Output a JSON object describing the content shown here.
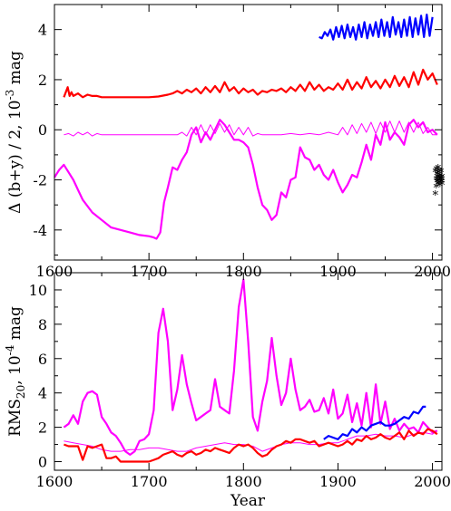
{
  "chart_data": [
    {
      "type": "line",
      "ylabel_main": "Δ (b+y) / 2, 10",
      "ylabel_sup": "-3",
      "ylabel_tail": " mag",
      "xlim": [
        1600,
        2010
      ],
      "ylim": [
        -5.2,
        5.0
      ],
      "xticks": [
        "1600",
        "1700",
        "1800",
        "1900",
        "2000"
      ],
      "yticks": [
        "-4",
        "-2",
        "0",
        "2",
        "4"
      ],
      "series": [
        {
          "color": "#0000ff",
          "width": 2.2,
          "x": [
            1880,
            1883,
            1886,
            1889,
            1892,
            1895,
            1898,
            1901,
            1904,
            1907,
            1910,
            1913,
            1916,
            1919,
            1922,
            1925,
            1928,
            1931,
            1934,
            1937,
            1940,
            1943,
            1946,
            1949,
            1952,
            1955,
            1958,
            1961,
            1964,
            1967,
            1970,
            1973,
            1976,
            1979,
            1982,
            1985,
            1988,
            1991,
            1994,
            1997,
            2000
          ],
          "y": [
            3.7,
            3.65,
            3.9,
            3.75,
            4.0,
            3.6,
            4.1,
            3.7,
            4.15,
            3.65,
            4.2,
            3.7,
            4.1,
            3.6,
            4.2,
            3.7,
            4.3,
            3.65,
            4.2,
            3.75,
            4.3,
            3.7,
            4.4,
            3.75,
            4.3,
            3.7,
            4.5,
            3.8,
            4.3,
            3.7,
            4.4,
            3.75,
            4.5,
            3.7,
            4.45,
            3.8,
            4.55,
            3.7,
            4.6,
            3.75,
            4.5
          ]
        },
        {
          "color": "#ff0000",
          "width": 2.2,
          "x": [
            1610,
            1612,
            1614,
            1616,
            1618,
            1620,
            1625,
            1630,
            1635,
            1640,
            1645,
            1650,
            1660,
            1670,
            1680,
            1690,
            1700,
            1710,
            1720,
            1725,
            1730,
            1735,
            1740,
            1745,
            1750,
            1755,
            1760,
            1765,
            1770,
            1775,
            1780,
            1785,
            1790,
            1795,
            1800,
            1805,
            1810,
            1815,
            1820,
            1825,
            1830,
            1835,
            1840,
            1845,
            1850,
            1855,
            1860,
            1865,
            1870,
            1875,
            1880,
            1885,
            1890,
            1895,
            1900,
            1905,
            1910,
            1915,
            1920,
            1925,
            1930,
            1935,
            1940,
            1945,
            1950,
            1955,
            1960,
            1965,
            1970,
            1975,
            1980,
            1985,
            1990,
            1995,
            2000,
            2005
          ],
          "y": [
            1.3,
            1.5,
            1.7,
            1.35,
            1.5,
            1.35,
            1.45,
            1.3,
            1.4,
            1.35,
            1.35,
            1.3,
            1.3,
            1.3,
            1.3,
            1.3,
            1.3,
            1.33,
            1.4,
            1.45,
            1.55,
            1.45,
            1.6,
            1.5,
            1.65,
            1.45,
            1.7,
            1.5,
            1.75,
            1.5,
            1.9,
            1.55,
            1.7,
            1.45,
            1.65,
            1.5,
            1.6,
            1.4,
            1.55,
            1.5,
            1.6,
            1.55,
            1.65,
            1.5,
            1.7,
            1.55,
            1.8,
            1.55,
            1.9,
            1.6,
            1.8,
            1.55,
            1.7,
            1.6,
            1.85,
            1.6,
            2.0,
            1.6,
            1.9,
            1.65,
            2.1,
            1.7,
            1.95,
            1.65,
            2.0,
            1.7,
            2.15,
            1.75,
            2.1,
            1.7,
            2.3,
            1.8,
            2.4,
            2.0,
            2.25,
            1.8
          ]
        },
        {
          "color": "#ff00ff",
          "width": 1.0,
          "x": [
            1610,
            1615,
            1620,
            1625,
            1630,
            1635,
            1640,
            1645,
            1650,
            1660,
            1670,
            1680,
            1690,
            1700,
            1710,
            1720,
            1730,
            1735,
            1740,
            1745,
            1750,
            1755,
            1760,
            1765,
            1770,
            1775,
            1780,
            1785,
            1790,
            1795,
            1800,
            1805,
            1810,
            1815,
            1820,
            1825,
            1830,
            1840,
            1850,
            1860,
            1870,
            1880,
            1890,
            1900,
            1905,
            1910,
            1915,
            1920,
            1925,
            1930,
            1935,
            1940,
            1945,
            1950,
            1955,
            1960,
            1965,
            1970,
            1975,
            1980,
            1985,
            1990,
            1995,
            2000,
            2005
          ],
          "y": [
            -0.2,
            -0.15,
            -0.25,
            -0.1,
            -0.2,
            -0.1,
            -0.25,
            -0.15,
            -0.2,
            -0.2,
            -0.2,
            -0.2,
            -0.2,
            -0.2,
            -0.2,
            -0.2,
            -0.2,
            -0.1,
            -0.25,
            0.1,
            -0.2,
            0.2,
            -0.2,
            0.2,
            -0.15,
            0.25,
            -0.1,
            0.2,
            -0.2,
            0.1,
            -0.2,
            0.1,
            -0.25,
            -0.15,
            -0.2,
            -0.2,
            -0.2,
            -0.2,
            -0.15,
            -0.2,
            -0.15,
            -0.2,
            -0.1,
            -0.2,
            0.1,
            -0.2,
            0.2,
            -0.15,
            0.25,
            -0.1,
            0.3,
            -0.15,
            0.3,
            -0.1,
            0.35,
            -0.1,
            0.35,
            -0.1,
            0.3,
            -0.1,
            0.3,
            -0.15,
            0.1,
            -0.2,
            -0.2
          ]
        },
        {
          "color": "#ff00ff",
          "width": 2.2,
          "x": [
            1600,
            1605,
            1610,
            1615,
            1620,
            1625,
            1630,
            1640,
            1650,
            1660,
            1670,
            1680,
            1690,
            1700,
            1705,
            1708,
            1712,
            1716,
            1720,
            1725,
            1730,
            1735,
            1740,
            1745,
            1750,
            1755,
            1760,
            1765,
            1770,
            1775,
            1780,
            1785,
            1790,
            1795,
            1800,
            1805,
            1810,
            1815,
            1820,
            1825,
            1830,
            1835,
            1840,
            1845,
            1850,
            1855,
            1860,
            1865,
            1870,
            1875,
            1880,
            1885,
            1890,
            1895,
            1900,
            1905,
            1910,
            1915,
            1920,
            1925,
            1930,
            1935,
            1940,
            1945,
            1950,
            1955,
            1960,
            1965,
            1970,
            1975,
            1980,
            1985,
            1990,
            1995,
            2000,
            2005
          ],
          "y": [
            -1.9,
            -1.6,
            -1.4,
            -1.7,
            -2.0,
            -2.4,
            -2.8,
            -3.3,
            -3.6,
            -3.9,
            -4.0,
            -4.1,
            -4.2,
            -4.25,
            -4.3,
            -4.35,
            -4.1,
            -2.9,
            -2.3,
            -1.5,
            -1.6,
            -1.2,
            -0.9,
            -0.2,
            0.1,
            -0.5,
            -0.1,
            -0.4,
            0.0,
            0.4,
            0.2,
            -0.1,
            -0.4,
            -0.4,
            -0.5,
            -0.7,
            -1.4,
            -2.3,
            -3.0,
            -3.2,
            -3.6,
            -3.4,
            -2.5,
            -2.7,
            -2.0,
            -1.9,
            -0.7,
            -1.1,
            -1.2,
            -1.6,
            -1.4,
            -1.8,
            -2.0,
            -1.6,
            -2.1,
            -2.5,
            -2.2,
            -1.8,
            -1.9,
            -1.3,
            -0.6,
            -1.2,
            -0.2,
            -0.6,
            0.3,
            -0.4,
            -0.1,
            -0.3,
            -0.6,
            0.2,
            0.4,
            0.1,
            0.3,
            -0.1,
            0.0,
            -0.2
          ]
        }
      ],
      "markers": {
        "color": "#000000",
        "symbol": "*",
        "x": [
          2003,
          2003,
          2004,
          2004,
          2004,
          2005,
          2005,
          2005,
          2006,
          2006,
          2006,
          2006,
          2007,
          2007,
          2007,
          2008,
          2008,
          2008,
          2009,
          2009,
          2009,
          2010,
          2010,
          2010,
          2010
        ],
        "y": [
          -2.6,
          -1.7,
          -2.0,
          -2.3,
          -1.6,
          -1.8,
          -2.1,
          -1.9,
          -1.55,
          -2.2,
          -1.75,
          -2.05,
          -1.9,
          -2.15,
          -1.65,
          -1.85,
          -2.0,
          -2.25,
          -1.95,
          -2.1,
          -1.7,
          -2.0,
          -2.2,
          -1.9,
          -2.1
        ]
      }
    },
    {
      "type": "line",
      "ylabel_main": "RMS",
      "ylabel_sub": "20",
      "ylabel_tail": ", 10",
      "ylabel_sup": "-4",
      "ylabel_tail2": " mag",
      "xlabel": "Year",
      "xlim": [
        1600,
        2010
      ],
      "ylim": [
        -0.5,
        11.0
      ],
      "xticks": [
        "1600",
        "1700",
        "1800",
        "1900",
        "2000"
      ],
      "yticks": [
        "0",
        "2",
        "4",
        "6",
        "8",
        "10"
      ],
      "series": [
        {
          "color": "#ff00ff",
          "width": 2.2,
          "x": [
            1610,
            1615,
            1620,
            1625,
            1630,
            1635,
            1640,
            1645,
            1650,
            1655,
            1660,
            1665,
            1670,
            1675,
            1680,
            1685,
            1690,
            1695,
            1700,
            1705,
            1710,
            1715,
            1720,
            1725,
            1730,
            1735,
            1740,
            1745,
            1750,
            1755,
            1760,
            1765,
            1770,
            1775,
            1780,
            1785,
            1790,
            1795,
            1800,
            1805,
            1810,
            1815,
            1820,
            1825,
            1830,
            1835,
            1840,
            1845,
            1850,
            1855,
            1860,
            1865,
            1870,
            1875,
            1880,
            1885,
            1890,
            1895,
            1900,
            1905,
            1910,
            1915,
            1920,
            1925,
            1930,
            1935,
            1940,
            1945,
            1950,
            1955,
            1960,
            1965,
            1970,
            1975,
            1980,
            1985,
            1990,
            1995,
            2000,
            2005
          ],
          "y": [
            2.0,
            2.2,
            2.7,
            2.2,
            3.5,
            4.0,
            4.1,
            3.9,
            2.6,
            2.2,
            1.7,
            1.5,
            1.1,
            0.6,
            0.4,
            0.6,
            1.2,
            1.3,
            1.6,
            3.0,
            7.5,
            8.9,
            7.0,
            3.0,
            4.2,
            6.2,
            4.5,
            3.4,
            2.4,
            2.6,
            2.8,
            3.0,
            4.8,
            3.2,
            3.0,
            2.8,
            5.3,
            9.0,
            10.6,
            7.0,
            2.6,
            1.8,
            3.5,
            4.7,
            7.2,
            5.0,
            3.3,
            4.0,
            6.0,
            4.2,
            3.0,
            3.2,
            3.6,
            2.9,
            3.0,
            3.7,
            2.8,
            4.2,
            2.5,
            2.8,
            3.9,
            2.3,
            3.4,
            2.1,
            4.0,
            2.0,
            4.5,
            2.2,
            3.5,
            1.9,
            2.5,
            1.8,
            2.2,
            1.9,
            2.0,
            1.7,
            2.3,
            2.0,
            1.7,
            1.8
          ]
        },
        {
          "color": "#ff00ff",
          "width": 1.0,
          "x": [
            1610,
            1620,
            1630,
            1640,
            1650,
            1660,
            1670,
            1680,
            1690,
            1700,
            1710,
            1720,
            1730,
            1740,
            1750,
            1760,
            1770,
            1780,
            1790,
            1800,
            1810,
            1820,
            1830,
            1840,
            1850,
            1860,
            1870,
            1880,
            1890,
            1900,
            1910,
            1920,
            1930,
            1940,
            1950,
            1960,
            1970,
            1980,
            1990,
            2000,
            2005
          ],
          "y": [
            1.2,
            1.1,
            1.0,
            0.9,
            0.7,
            0.6,
            0.6,
            0.7,
            0.7,
            0.8,
            0.8,
            0.7,
            0.6,
            0.6,
            0.8,
            0.9,
            1.0,
            1.1,
            1.0,
            1.0,
            0.9,
            0.6,
            0.8,
            1.0,
            1.1,
            1.1,
            1.0,
            1.0,
            1.1,
            1.1,
            1.3,
            1.5,
            1.5,
            1.6,
            1.5,
            1.5,
            1.4,
            1.6,
            1.7,
            1.6,
            1.8
          ]
        },
        {
          "color": "#ff0000",
          "width": 2.2,
          "x": [
            1610,
            1615,
            1620,
            1625,
            1630,
            1635,
            1640,
            1645,
            1650,
            1655,
            1660,
            1665,
            1670,
            1680,
            1690,
            1700,
            1705,
            1710,
            1715,
            1720,
            1725,
            1730,
            1735,
            1740,
            1745,
            1750,
            1755,
            1760,
            1765,
            1770,
            1775,
            1780,
            1785,
            1790,
            1795,
            1800,
            1805,
            1810,
            1815,
            1820,
            1825,
            1830,
            1835,
            1840,
            1845,
            1850,
            1855,
            1860,
            1865,
            1870,
            1875,
            1880,
            1885,
            1890,
            1895,
            1900,
            1905,
            1910,
            1915,
            1920,
            1925,
            1930,
            1935,
            1940,
            1945,
            1950,
            1955,
            1960,
            1965,
            1970,
            1975,
            1980,
            1985,
            1990,
            1995,
            2000,
            2005
          ],
          "y": [
            1.0,
            0.9,
            0.9,
            0.9,
            0.1,
            0.9,
            0.8,
            0.9,
            1.0,
            0.2,
            0.2,
            0.3,
            0.0,
            0.0,
            0.0,
            0.0,
            0.1,
            0.2,
            0.4,
            0.5,
            0.6,
            0.4,
            0.3,
            0.5,
            0.6,
            0.4,
            0.5,
            0.7,
            0.6,
            0.8,
            0.7,
            0.6,
            0.5,
            0.8,
            1.0,
            0.9,
            1.0,
            0.8,
            0.5,
            0.3,
            0.4,
            0.7,
            0.9,
            1.0,
            1.2,
            1.1,
            1.3,
            1.3,
            1.2,
            1.1,
            1.2,
            0.9,
            1.0,
            1.1,
            1.0,
            0.9,
            1.0,
            1.2,
            1.0,
            1.3,
            1.2,
            1.5,
            1.3,
            1.4,
            1.6,
            1.4,
            1.3,
            1.5,
            1.7,
            1.3,
            1.8,
            1.5,
            1.7,
            1.6,
            1.9,
            1.8,
            1.6
          ]
        },
        {
          "color": "#0000ff",
          "width": 2.2,
          "x": [
            1885,
            1890,
            1895,
            1900,
            1905,
            1910,
            1915,
            1920,
            1925,
            1930,
            1935,
            1940,
            1945,
            1950,
            1955,
            1960,
            1965,
            1970,
            1975,
            1980,
            1985,
            1990,
            1993
          ],
          "y": [
            1.3,
            1.5,
            1.4,
            1.3,
            1.6,
            1.5,
            1.9,
            1.7,
            2.0,
            1.8,
            2.1,
            2.2,
            2.3,
            2.1,
            2.1,
            2.2,
            2.4,
            2.6,
            2.5,
            2.9,
            2.8,
            3.2,
            3.2
          ]
        }
      ]
    }
  ]
}
